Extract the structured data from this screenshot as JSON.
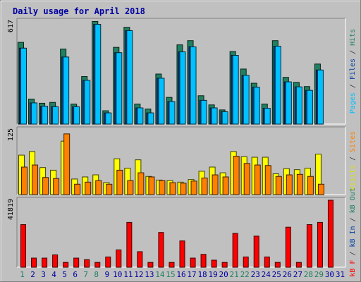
{
  "chart_data": {
    "type": "bar",
    "title": "Daily usage for April 2018",
    "categories": [
      "1",
      "2",
      "3",
      "4",
      "5",
      "6",
      "7",
      "8",
      "9",
      "10",
      "11",
      "12",
      "13",
      "14",
      "15",
      "16",
      "17",
      "18",
      "19",
      "20",
      "21",
      "22",
      "23",
      "24",
      "25",
      "26",
      "27",
      "28",
      "29",
      "30",
      "31"
    ],
    "weekend_days": [
      "1",
      "7",
      "8",
      "14",
      "15",
      "21",
      "22",
      "28",
      "29"
    ],
    "panels": [
      {
        "id": "top",
        "ymax_label": "617",
        "ymax": 617,
        "right_labels": [
          {
            "text": "Pages",
            "color": "#00c0ff"
          },
          {
            "text": " / ",
            "color": "#333333"
          },
          {
            "text": "Files",
            "color": "#0040a0"
          },
          {
            "text": " / ",
            "color": "#333333"
          },
          {
            "text": "Hits",
            "color": "#208060"
          }
        ],
        "series": [
          {
            "name": "Hits",
            "color": "#208060",
            "values": [
              490,
              150,
              125,
              130,
              450,
              120,
              285,
              615,
              80,
              460,
              580,
              120,
              90,
              300,
              160,
              475,
              500,
              170,
              115,
              85,
              435,
              330,
              245,
              120,
              500,
              280,
              250,
              225,
              360,
              0,
              0
            ]
          },
          {
            "name": "Files",
            "color": "#0040a0",
            "values": [
              455,
              127,
              107,
              104,
              402,
              104,
              262,
              598,
              67,
              428,
              560,
              97,
              67,
              275,
              135,
              433,
              463,
              142,
              97,
              74,
              412,
              292,
              221,
              95,
              467,
              253,
              223,
              202,
              324,
              0,
              0
            ]
          },
          {
            "name": "Pages",
            "color": "#00c0ff",
            "values": [
              455,
              127,
              107,
              104,
              402,
              104,
              262,
              598,
              67,
              428,
              560,
              97,
              67,
              275,
              135,
              433,
              463,
              142,
              97,
              74,
              412,
              292,
              221,
              95,
              467,
              253,
              223,
              202,
              324,
              0,
              0
            ]
          }
        ]
      },
      {
        "id": "mid",
        "ymax_label": "125",
        "ymax": 125,
        "right_labels": [
          {
            "text": "Visits",
            "color": "#e0e000"
          },
          {
            "text": " / ",
            "color": "#333333"
          },
          {
            "text": "Sites",
            "color": "#ff8000"
          }
        ],
        "series": [
          {
            "name": "Visits",
            "color": "#ffff00",
            "values": [
              76,
              83,
              52,
              47,
              103,
              30,
              34,
              38,
              23,
              69,
              51,
              67,
              35,
              28,
              27,
              24,
              29,
              45,
              53,
              42,
              83,
              73,
              72,
              72,
              40,
              50,
              48,
              51,
              78,
              0,
              0
            ]
          },
          {
            "name": "Sites",
            "color": "#ff8000",
            "values": [
              53,
              57,
              33,
              31,
              117,
              20,
              24,
              27,
              20,
              47,
              27,
              42,
              34,
              27,
              23,
              22,
              26,
              32,
              38,
              34,
              74,
              60,
              57,
              56,
              35,
              38,
              39,
              35,
              20,
              0,
              0
            ]
          }
        ]
      },
      {
        "id": "bot",
        "ymax_label": "41819",
        "ymax": 41819,
        "right_labels": [
          {
            "text": "kB F",
            "color": "#ff0000"
          },
          {
            "text": " / ",
            "color": "#333333"
          },
          {
            "text": "kB In",
            "color": "#0040a0"
          },
          {
            "text": " / ",
            "color": "#333333"
          },
          {
            "text": "kB Out",
            "color": "#208060"
          }
        ],
        "series": [
          {
            "name": "kB F",
            "color": "#ff0000",
            "values": [
              26600,
              5700,
              5700,
              7700,
              3000,
              5700,
              4700,
              3000,
              6400,
              10800,
              28000,
              9700,
              3000,
              21700,
              3000,
              16400,
              5700,
              8000,
              4400,
              3000,
              21100,
              6400,
              19400,
              6400,
              3000,
              25000,
              3000,
              26600,
              28000,
              41819,
              0
            ]
          }
        ]
      }
    ],
    "xlabels_color_weekday": "#0000a0",
    "xlabels_color_weekend": "#208060"
  }
}
